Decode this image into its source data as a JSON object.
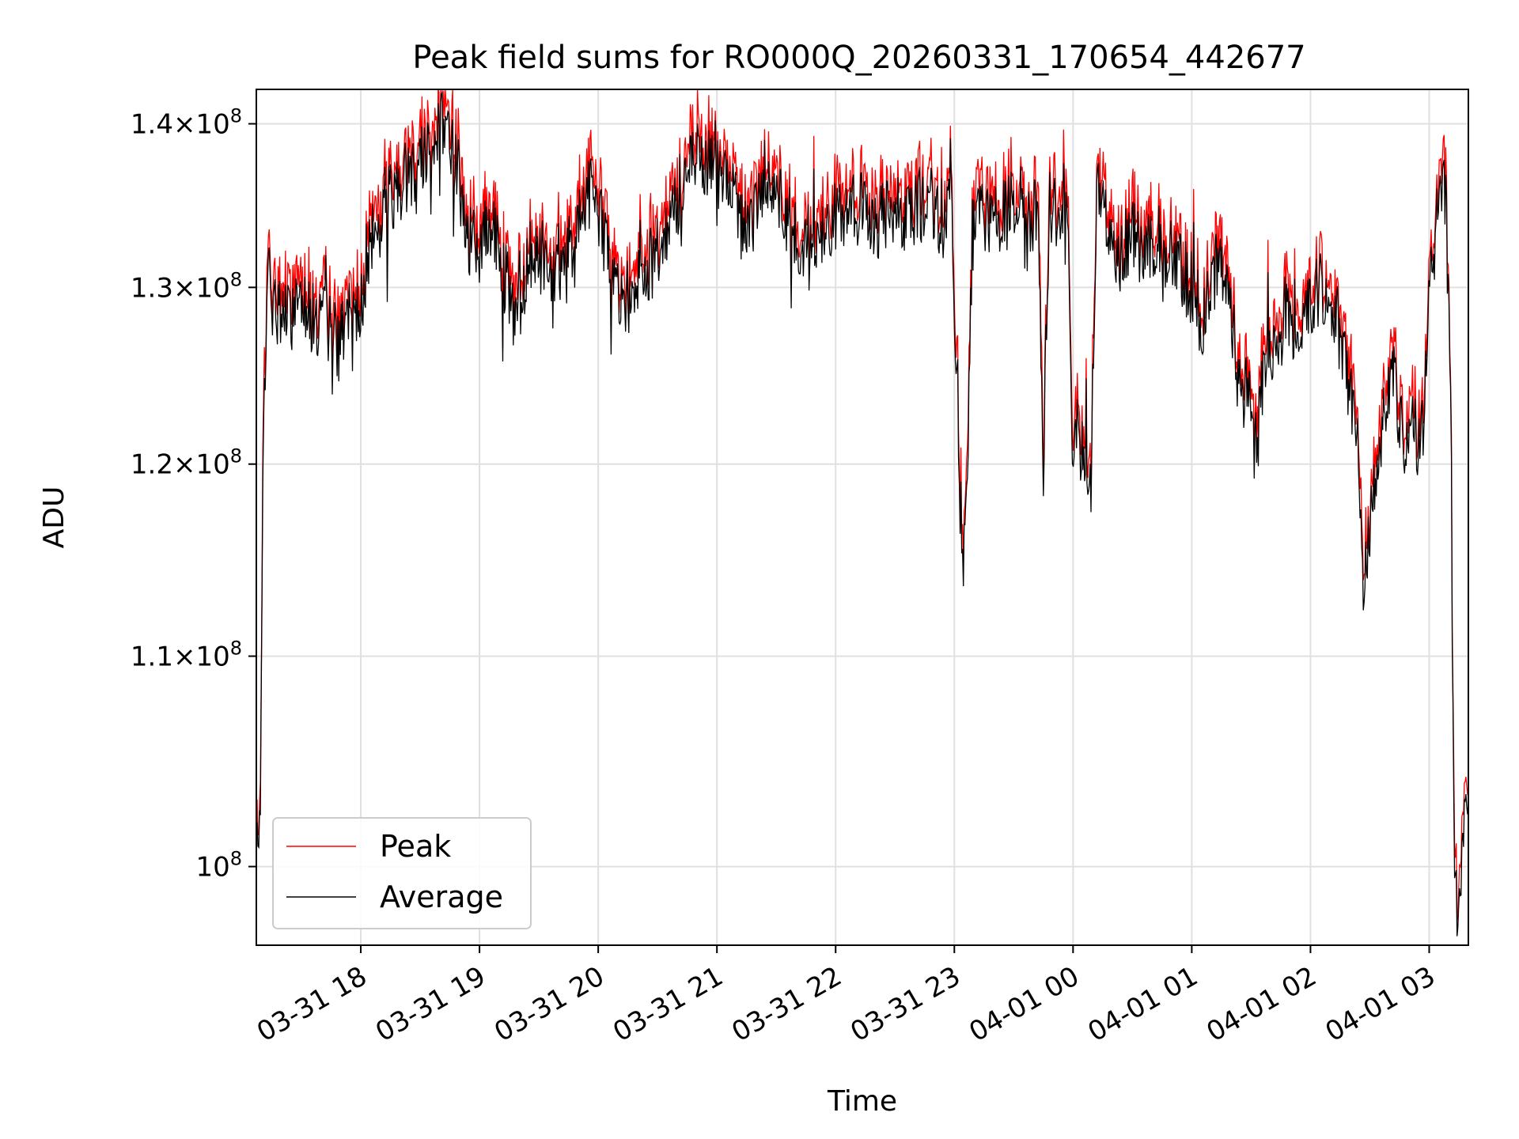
{
  "chart_data": {
    "type": "line",
    "title": "Peak field sums for RO000Q_20260331_170654_442677",
    "xlabel": "Time",
    "ylabel": "ADU",
    "yscale": "log",
    "ylim": [
      96500000,
      142200000
    ],
    "xlim_hours": [
      17.12,
      3.33
    ],
    "grid": true,
    "legend": {
      "location": "lower-left",
      "entries": [
        "Peak",
        "Average"
      ]
    },
    "colors": {
      "Peak": "#ff0000",
      "Average": "#000000",
      "grid": "#e0e0e0"
    },
    "yticks": [
      {
        "value": 100000000,
        "mantissa": "",
        "exp": "8"
      },
      {
        "value": 110000000,
        "mantissa": "1.1",
        "exp": "8"
      },
      {
        "value": 120000000,
        "mantissa": "1.2",
        "exp": "8"
      },
      {
        "value": 130000000,
        "mantissa": "1.3",
        "exp": "8"
      },
      {
        "value": 140000000,
        "mantissa": "1.4",
        "exp": "8"
      }
    ],
    "xticks": [
      {
        "hours": 18,
        "label": "03-31 18"
      },
      {
        "hours": 19,
        "label": "03-31 19"
      },
      {
        "hours": 20,
        "label": "03-31 20"
      },
      {
        "hours": 21,
        "label": "03-31 21"
      },
      {
        "hours": 22,
        "label": "03-31 22"
      },
      {
        "hours": 23,
        "label": "03-31 23"
      },
      {
        "hours": 24,
        "label": "04-01 00"
      },
      {
        "hours": 25,
        "label": "04-01 01"
      },
      {
        "hours": 26,
        "label": "04-01 02"
      },
      {
        "hours": 27,
        "label": "04-01 03"
      }
    ],
    "keypoints_hours": [
      17.12,
      17.14,
      17.16,
      17.18,
      17.2,
      17.22,
      17.25,
      17.3,
      17.4,
      17.5,
      17.6,
      17.7,
      17.8,
      17.9,
      18,
      18.1,
      18.2,
      18.3,
      18.4,
      18.5,
      18.6,
      18.7,
      18.8,
      18.9,
      19,
      19.1,
      19.2,
      19.3,
      19.4,
      19.5,
      19.6,
      19.7,
      19.8,
      19.9,
      20,
      20.1,
      20.2,
      20.3,
      20.4,
      20.5,
      20.6,
      20.7,
      20.8,
      20.9,
      21,
      21.1,
      21.2,
      21.3,
      21.4,
      21.5,
      21.6,
      21.7,
      21.8,
      21.9,
      22,
      22.1,
      22.2,
      22.3,
      22.4,
      22.5,
      22.6,
      22.7,
      22.8,
      22.9,
      22.95,
      22.97,
      22.99,
      23.02,
      23.06,
      23.1,
      23.15,
      23.2,
      23.3,
      23.4,
      23.5,
      23.55,
      23.6,
      23.7,
      23.75,
      23.8,
      23.9,
      23.95,
      24,
      24.05,
      24.1,
      24.15,
      24.2,
      24.25,
      24.3,
      24.4,
      24.5,
      24.6,
      24.7,
      24.8,
      24.9,
      25,
      25.1,
      25.2,
      25.3,
      25.4,
      25.5,
      25.55,
      25.6,
      25.7,
      25.8,
      25.9,
      26,
      26.1,
      26.2,
      26.3,
      26.4,
      26.45,
      26.5,
      26.6,
      26.7,
      26.75,
      26.8,
      26.85,
      26.9,
      26.95,
      27,
      27.05,
      27.1,
      27.12,
      27.15,
      27.18,
      27.2,
      27.22,
      27.25,
      27.28,
      27.3,
      27.33
    ],
    "keypoints_adu": [
      101000000,
      99000000,
      106000000,
      122000000,
      125000000,
      132000000,
      128000000,
      129000000,
      128000000,
      130000000,
      128000000,
      128000000,
      127000000,
      128000000,
      129000000,
      133000000,
      135000000,
      136000000,
      137000000,
      138000000,
      139000000,
      140000000,
      138000000,
      133000000,
      132000000,
      134000000,
      131000000,
      128000000,
      131000000,
      132000000,
      131000000,
      131000000,
      132000000,
      136000000,
      135000000,
      131000000,
      129000000,
      130000000,
      131000000,
      132000000,
      134000000,
      136000000,
      138000000,
      137000000,
      138000000,
      136000000,
      134000000,
      134000000,
      137000000,
      136000000,
      134000000,
      132000000,
      132000000,
      133000000,
      134000000,
      135000000,
      135000000,
      134000000,
      134000000,
      135000000,
      134000000,
      135000000,
      135000000,
      134000000,
      134000000,
      139000000,
      128000000,
      126000000,
      115000000,
      116000000,
      133000000,
      134000000,
      134000000,
      134000000,
      135000000,
      135000000,
      133000000,
      135000000,
      120000000,
      135000000,
      134000000,
      137000000,
      120000000,
      121000000,
      120000000,
      119000000,
      135000000,
      137000000,
      133000000,
      132000000,
      133000000,
      132000000,
      133000000,
      132000000,
      131000000,
      130000000,
      128000000,
      131000000,
      131000000,
      124000000,
      124000000,
      121000000,
      125000000,
      127000000,
      128000000,
      128000000,
      129000000,
      130000000,
      129000000,
      125000000,
      122000000,
      113000000,
      117000000,
      123000000,
      125000000,
      122000000,
      121000000,
      123000000,
      121000000,
      122000000,
      131000000,
      133000000,
      136000000,
      137000000,
      134000000,
      125000000,
      106000000,
      99000000,
      97000000,
      100000000,
      102000000,
      103000000
    ]
  }
}
